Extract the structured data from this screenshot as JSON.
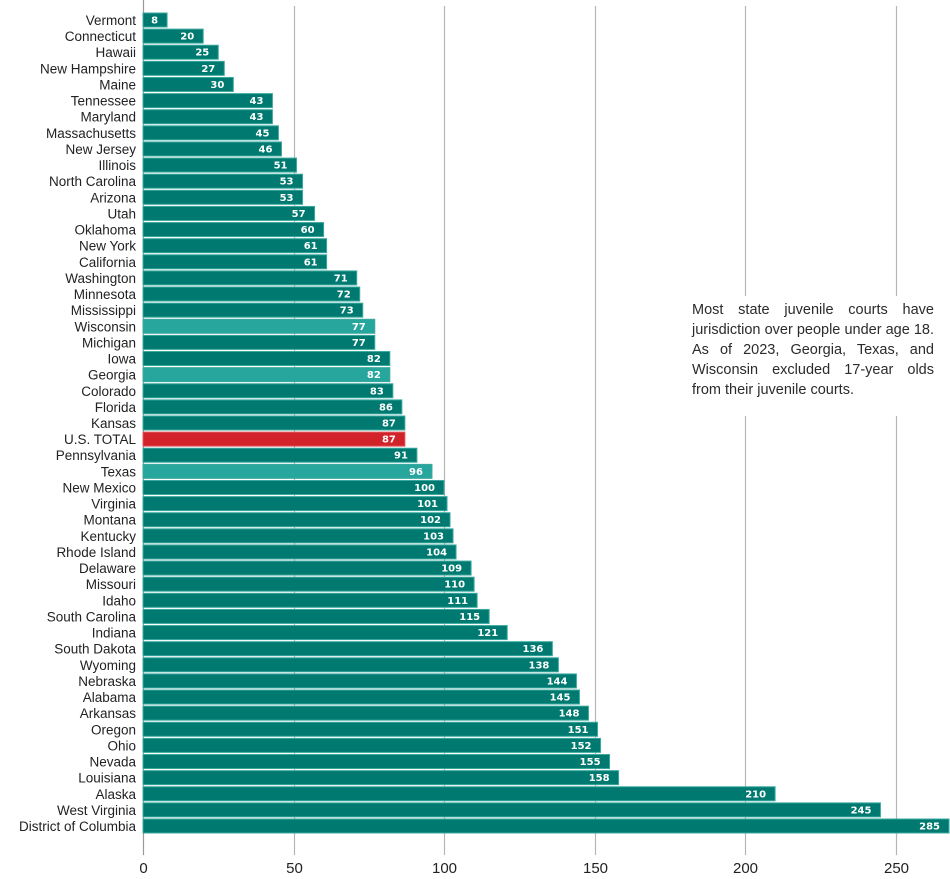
{
  "chart_data": {
    "type": "bar",
    "orientation": "horizontal",
    "title": "",
    "xlabel": "",
    "ylabel": "",
    "xlim": [
      0,
      270
    ],
    "xticks": [
      0,
      50,
      100,
      150,
      200,
      250
    ],
    "grid": true,
    "colors": {
      "default": "#007a70",
      "highlight": "#27a69d",
      "total": "#d2232a",
      "border": "#3aa99f",
      "grid": "#b5b5b5"
    },
    "bars": [
      {
        "label": "Vermont",
        "value": 8,
        "kind": "default"
      },
      {
        "label": "Connecticut",
        "value": 20,
        "kind": "default"
      },
      {
        "label": "Hawaii",
        "value": 25,
        "kind": "default"
      },
      {
        "label": "New Hampshire",
        "value": 27,
        "kind": "default"
      },
      {
        "label": "Maine",
        "value": 30,
        "kind": "default"
      },
      {
        "label": "Tennessee",
        "value": 43,
        "kind": "default"
      },
      {
        "label": "Maryland",
        "value": 43,
        "kind": "default"
      },
      {
        "label": "Massachusetts",
        "value": 45,
        "kind": "default"
      },
      {
        "label": "New Jersey",
        "value": 46,
        "kind": "default"
      },
      {
        "label": "Illinois",
        "value": 51,
        "kind": "default"
      },
      {
        "label": "North Carolina",
        "value": 53,
        "kind": "default"
      },
      {
        "label": "Arizona",
        "value": 53,
        "kind": "default"
      },
      {
        "label": "Utah",
        "value": 57,
        "kind": "default"
      },
      {
        "label": "Oklahoma",
        "value": 60,
        "kind": "default"
      },
      {
        "label": "New York",
        "value": 61,
        "kind": "default"
      },
      {
        "label": "California",
        "value": 61,
        "kind": "default"
      },
      {
        "label": "Washington",
        "value": 71,
        "kind": "default"
      },
      {
        "label": "Minnesota",
        "value": 72,
        "kind": "default"
      },
      {
        "label": "Mississippi",
        "value": 73,
        "kind": "default"
      },
      {
        "label": "Wisconsin",
        "value": 77,
        "kind": "highlight"
      },
      {
        "label": "Michigan",
        "value": 77,
        "kind": "default"
      },
      {
        "label": "Iowa",
        "value": 82,
        "kind": "default"
      },
      {
        "label": "Georgia",
        "value": 82,
        "kind": "highlight"
      },
      {
        "label": "Colorado",
        "value": 83,
        "kind": "default"
      },
      {
        "label": "Florida",
        "value": 86,
        "kind": "default"
      },
      {
        "label": "Kansas",
        "value": 87,
        "kind": "default"
      },
      {
        "label": "U.S. TOTAL",
        "value": 87,
        "kind": "total"
      },
      {
        "label": "Pennsylvania",
        "value": 91,
        "kind": "default"
      },
      {
        "label": "Texas",
        "value": 96,
        "kind": "highlight"
      },
      {
        "label": "New Mexico",
        "value": 100,
        "kind": "default"
      },
      {
        "label": "Virginia",
        "value": 101,
        "kind": "default"
      },
      {
        "label": "Montana",
        "value": 102,
        "kind": "default"
      },
      {
        "label": "Kentucky",
        "value": 103,
        "kind": "default"
      },
      {
        "label": "Rhode Island",
        "value": 104,
        "kind": "default"
      },
      {
        "label": "Delaware",
        "value": 109,
        "kind": "default"
      },
      {
        "label": "Missouri",
        "value": 110,
        "kind": "default"
      },
      {
        "label": "Idaho",
        "value": 111,
        "kind": "default"
      },
      {
        "label": "South Carolina",
        "value": 115,
        "kind": "default"
      },
      {
        "label": "Indiana",
        "value": 121,
        "kind": "default"
      },
      {
        "label": "South Dakota",
        "value": 136,
        "kind": "default"
      },
      {
        "label": "Wyoming",
        "value": 138,
        "kind": "default"
      },
      {
        "label": "Nebraska",
        "value": 144,
        "kind": "default"
      },
      {
        "label": "Alabama",
        "value": 145,
        "kind": "default"
      },
      {
        "label": "Arkansas",
        "value": 148,
        "kind": "default"
      },
      {
        "label": "Oregon",
        "value": 151,
        "kind": "default"
      },
      {
        "label": "Ohio",
        "value": 152,
        "kind": "default"
      },
      {
        "label": "Nevada",
        "value": 155,
        "kind": "default"
      },
      {
        "label": "Louisiana",
        "value": 158,
        "kind": "default"
      },
      {
        "label": "Alaska",
        "value": 210,
        "kind": "default"
      },
      {
        "label": "West Virginia",
        "value": 245,
        "kind": "default"
      },
      {
        "label": "District of Columbia",
        "value": 285,
        "kind": "default"
      }
    ],
    "annotation": "Most state juvenile courts have jurisdiction over people under age 18. As of 2023, Georgia, Texas, and Wisconsin excluded 17-year olds from their juvenile courts."
  }
}
